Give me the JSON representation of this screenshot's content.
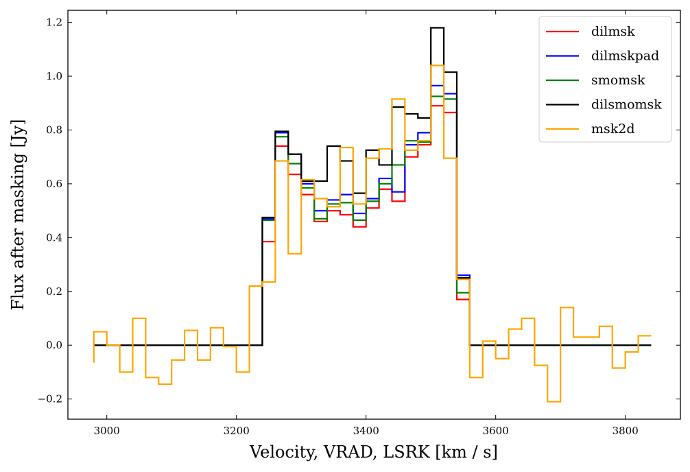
{
  "chart_data": {
    "type": "line",
    "drawstyle": "steps-mid",
    "xlabel": "Velocity, VRAD, LSRK [km / s]",
    "ylabel": "Flux after masking [Jy]",
    "xlim": [
      2940,
      3885
    ],
    "ylim": [
      -0.275,
      1.245
    ],
    "xticks": [
      3000,
      3200,
      3400,
      3600,
      3800
    ],
    "yticks": [
      -0.2,
      0.0,
      0.2,
      0.4,
      0.6,
      0.8,
      1.0,
      1.2
    ],
    "xtick_labels": [
      "3000",
      "3200",
      "3400",
      "3600",
      "3800"
    ],
    "ytick_labels": [
      "−0.2",
      "0.0",
      "0.2",
      "0.4",
      "0.6",
      "0.8",
      "1.0",
      "1.2"
    ],
    "grid": false,
    "legend_position": "top-right",
    "x": [
      2990,
      3010,
      3030,
      3050,
      3070,
      3090,
      3110,
      3130,
      3150,
      3170,
      3190,
      3210,
      3230,
      3250,
      3270,
      3290,
      3310,
      3330,
      3350,
      3370,
      3390,
      3410,
      3430,
      3450,
      3470,
      3490,
      3510,
      3530,
      3550,
      3570,
      3590,
      3610,
      3630,
      3650,
      3670,
      3690,
      3710,
      3730,
      3750,
      3770,
      3790,
      3810,
      3830
    ],
    "series": [
      {
        "name": "dilmsk",
        "color": "#ff0000",
        "values": [
          0,
          0,
          0,
          0,
          0,
          0,
          0,
          0,
          0,
          0,
          0,
          0,
          0,
          0.385,
          0.74,
          0.635,
          0.56,
          0.46,
          0.5,
          0.485,
          0.44,
          0.51,
          0.58,
          0.535,
          0.7,
          0.745,
          0.89,
          0.865,
          0.17,
          0,
          0,
          0,
          0,
          0,
          0,
          0,
          0,
          0,
          0,
          0,
          0,
          0,
          0
        ]
      },
      {
        "name": "dilmskpad",
        "color": "#0000ff",
        "values": [
          0,
          0,
          0,
          0,
          0,
          0,
          0,
          0,
          0,
          0,
          0,
          0,
          0,
          0.47,
          0.79,
          0.71,
          0.6,
          0.5,
          0.54,
          0.56,
          0.49,
          0.545,
          0.62,
          0.57,
          0.745,
          0.79,
          0.965,
          0.935,
          0.26,
          0,
          0,
          0,
          0,
          0,
          0,
          0,
          0,
          0,
          0,
          0,
          0,
          0,
          0
        ]
      },
      {
        "name": "smomsk",
        "color": "#008000",
        "values": [
          0,
          0,
          0,
          0,
          0,
          0,
          0,
          0,
          0,
          0,
          0,
          0,
          0,
          0.465,
          0.775,
          0.675,
          0.585,
          0.47,
          0.525,
          0.53,
          0.465,
          0.535,
          0.6,
          0.67,
          0.76,
          0.755,
          0.925,
          0.915,
          0.195,
          0,
          0,
          0,
          0,
          0,
          0,
          0,
          0,
          0,
          0,
          0,
          0,
          0,
          0
        ]
      },
      {
        "name": "dilsmomsk",
        "color": "#000000",
        "values": [
          0,
          0,
          0,
          0,
          0,
          0,
          0,
          0,
          0,
          0,
          0,
          0,
          0,
          0.475,
          0.795,
          0.71,
          0.61,
          0.61,
          0.74,
          0.685,
          0.565,
          0.725,
          0.67,
          0.885,
          0.86,
          0.845,
          1.18,
          1.015,
          0.25,
          0,
          0,
          0,
          0,
          0,
          0,
          0,
          0,
          0,
          0,
          0,
          0,
          0,
          0
        ]
      },
      {
        "name": "msk2d",
        "color": "#ffa500",
        "values": [
          0.05,
          0.0,
          -0.1,
          0.1,
          -0.12,
          -0.145,
          -0.055,
          0.055,
          -0.055,
          0.065,
          -0.005,
          -0.1,
          0.22,
          0.235,
          0.685,
          0.34,
          0.615,
          0.545,
          0.515,
          0.735,
          0.525,
          0.695,
          0.73,
          0.915,
          0.725,
          0.76,
          1.04,
          0.695,
          0.245,
          -0.12,
          0.015,
          -0.05,
          0.06,
          0.1,
          -0.075,
          -0.21,
          0.14,
          0.03,
          0.03,
          0.07,
          -0.085,
          -0.025,
          0.035
        ],
        "start_value": -0.065
      }
    ]
  }
}
